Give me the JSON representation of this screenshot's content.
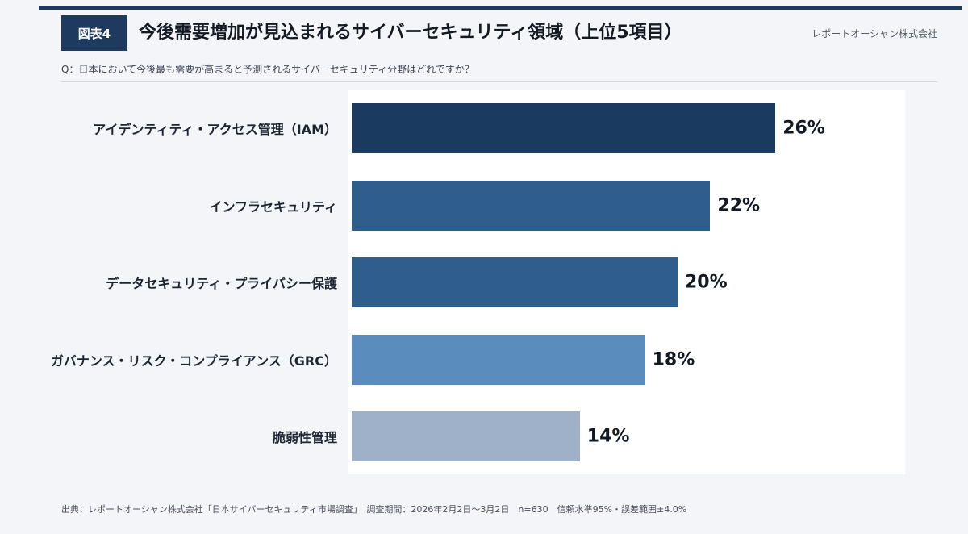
{
  "header": {
    "figure_label": "図表4",
    "title": "今後需要増加が見込まれるサイバーセキュリティ領域（上位5項目）",
    "company": "レポートオーシャン株式会社",
    "question": "Q：日本において今後最も需要が高まると予測されるサイバーセキュリティ分野はどれですか？"
  },
  "chart_data": {
    "type": "bar",
    "orientation": "horizontal",
    "title": "今後需要増加が見込まれるサイバーセキュリティ領域（上位5項目）",
    "xlabel": "",
    "ylabel": "",
    "xlim": [
      0,
      34
    ],
    "categories": [
      "アイデンティティ・アクセス管理（IAM）",
      "インフラセキュリティ",
      "データセキュリティ・プライバシー保護",
      "ガバナンス・リスク・コンプライアンス（GRC）",
      "脆弱性管理"
    ],
    "values": [
      26,
      22,
      20,
      18,
      14
    ],
    "value_labels": [
      "26%",
      "22%",
      "20%",
      "18%",
      "14%"
    ],
    "colors": [
      "#1b3a5f",
      "#2f5e8c",
      "#2f5e8c",
      "#5a8cbd",
      "#9fb1c8"
    ]
  },
  "footer": {
    "source": "出典：レポートオーシャン株式会社「日本サイバーセキュリティ市場調査」　調査期間：2026年2月2日〜3月2日　n=630　信頼水準95%・誤差範囲±4.0%"
  }
}
